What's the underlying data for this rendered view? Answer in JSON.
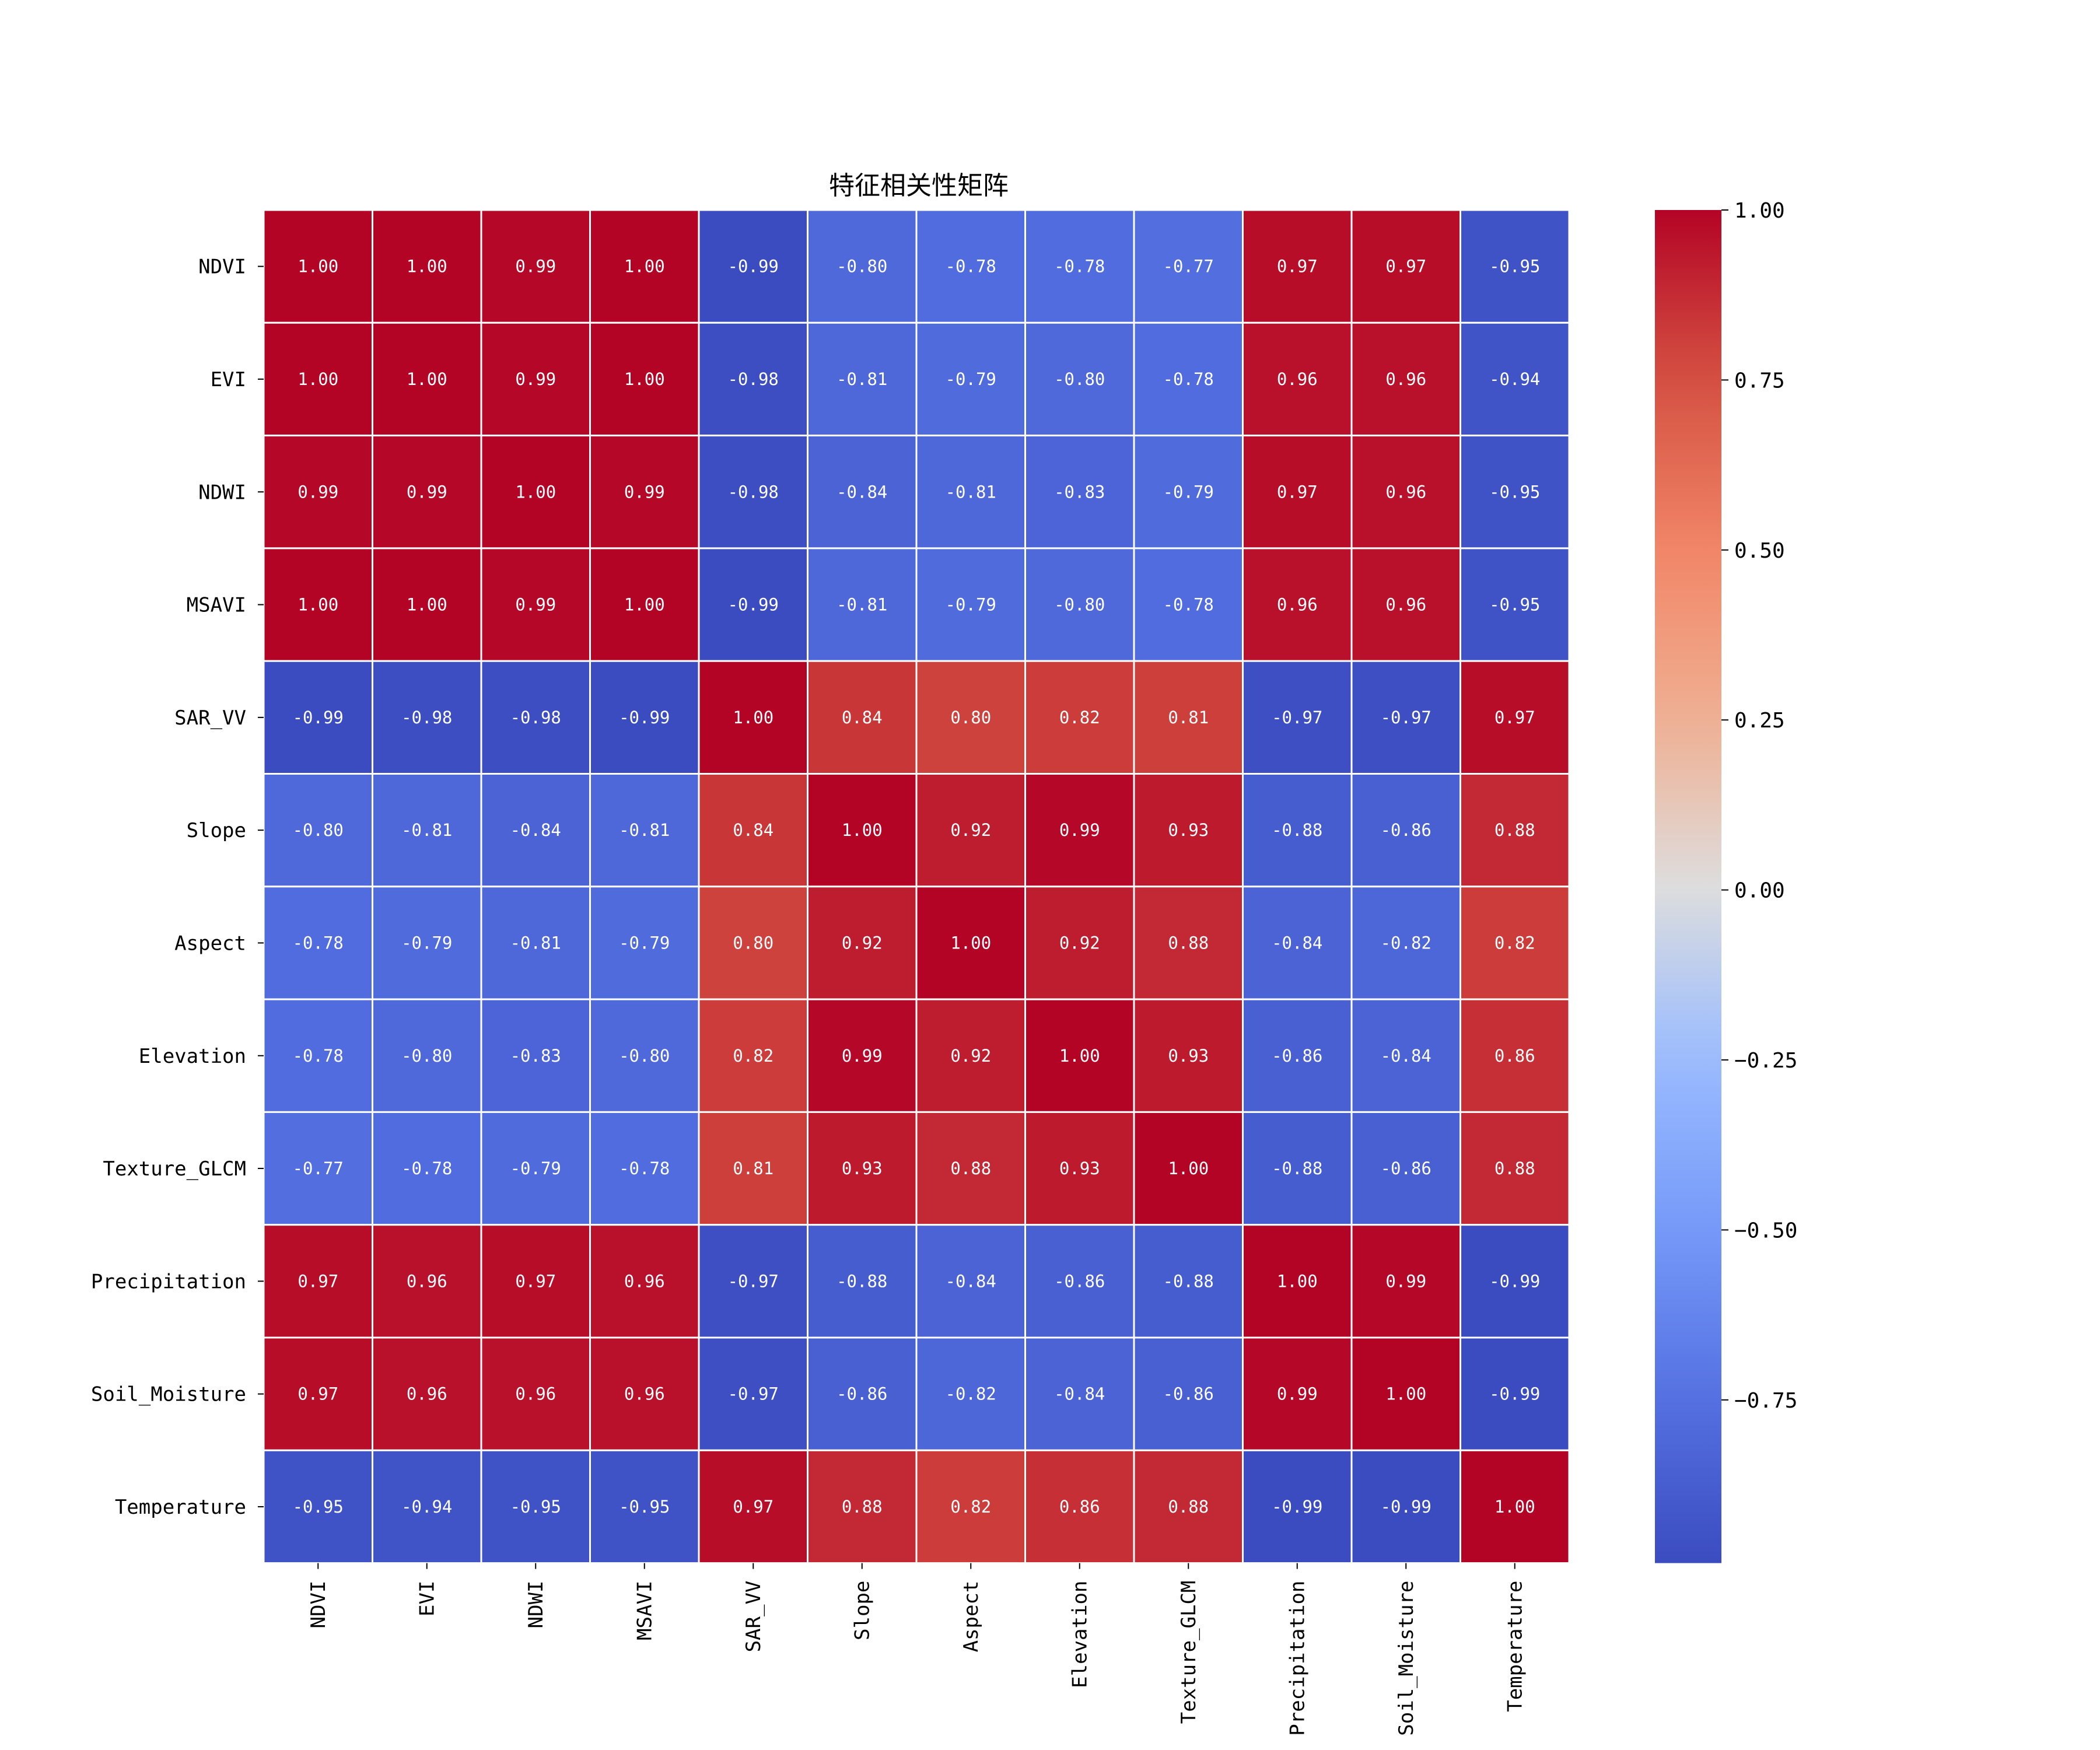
{
  "chart_data": {
    "type": "heatmap",
    "title": "特征相关性矩阵",
    "labels": [
      "NDVI",
      "EVI",
      "NDWI",
      "MSAVI",
      "SAR_VV",
      "Slope",
      "Aspect",
      "Elevation",
      "Texture_GLCM",
      "Precipitation",
      "Soil_Moisture",
      "Temperature"
    ],
    "values": [
      [
        1.0,
        1.0,
        0.99,
        1.0,
        -0.99,
        -0.8,
        -0.78,
        -0.78,
        -0.77,
        0.97,
        0.97,
        -0.95
      ],
      [
        1.0,
        1.0,
        0.99,
        1.0,
        -0.98,
        -0.81,
        -0.79,
        -0.8,
        -0.78,
        0.96,
        0.96,
        -0.94
      ],
      [
        0.99,
        0.99,
        1.0,
        0.99,
        -0.98,
        -0.84,
        -0.81,
        -0.83,
        -0.79,
        0.97,
        0.96,
        -0.95
      ],
      [
        1.0,
        1.0,
        0.99,
        1.0,
        -0.99,
        -0.81,
        -0.79,
        -0.8,
        -0.78,
        0.96,
        0.96,
        -0.95
      ],
      [
        -0.99,
        -0.98,
        -0.98,
        -0.99,
        1.0,
        0.84,
        0.8,
        0.82,
        0.81,
        -0.97,
        -0.97,
        0.97
      ],
      [
        -0.8,
        -0.81,
        -0.84,
        -0.81,
        0.84,
        1.0,
        0.92,
        0.99,
        0.93,
        -0.88,
        -0.86,
        0.88
      ],
      [
        -0.78,
        -0.79,
        -0.81,
        -0.79,
        0.8,
        0.92,
        1.0,
        0.92,
        0.88,
        -0.84,
        -0.82,
        0.82
      ],
      [
        -0.78,
        -0.8,
        -0.83,
        -0.8,
        0.82,
        0.99,
        0.92,
        1.0,
        0.93,
        -0.86,
        -0.84,
        0.86
      ],
      [
        -0.77,
        -0.78,
        -0.79,
        -0.78,
        0.81,
        0.93,
        0.88,
        0.93,
        1.0,
        -0.88,
        -0.86,
        0.88
      ],
      [
        0.97,
        0.96,
        0.97,
        0.96,
        -0.97,
        -0.88,
        -0.84,
        -0.86,
        -0.88,
        1.0,
        0.99,
        -0.99
      ],
      [
        0.97,
        0.96,
        0.96,
        0.96,
        -0.97,
        -0.86,
        -0.82,
        -0.84,
        -0.86,
        0.99,
        1.0,
        -0.99
      ],
      [
        -0.95,
        -0.94,
        -0.95,
        -0.95,
        0.97,
        0.88,
        0.82,
        0.86,
        0.88,
        -0.99,
        -0.99,
        1.0
      ]
    ],
    "value_format": "2 decimals",
    "colormap": "coolwarm",
    "colorbar": {
      "range": [
        -0.99,
        1.0
      ],
      "ticks": [
        1.0,
        0.75,
        0.5,
        0.25,
        0.0,
        -0.25,
        -0.5,
        -0.75
      ],
      "tick_labels": [
        "1.00",
        "0.75",
        "0.50",
        "0.25",
        "0.00",
        "−0.25",
        "−0.50",
        "−0.75"
      ],
      "placement": "right"
    },
    "cell_border_color": "#ffffff"
  }
}
